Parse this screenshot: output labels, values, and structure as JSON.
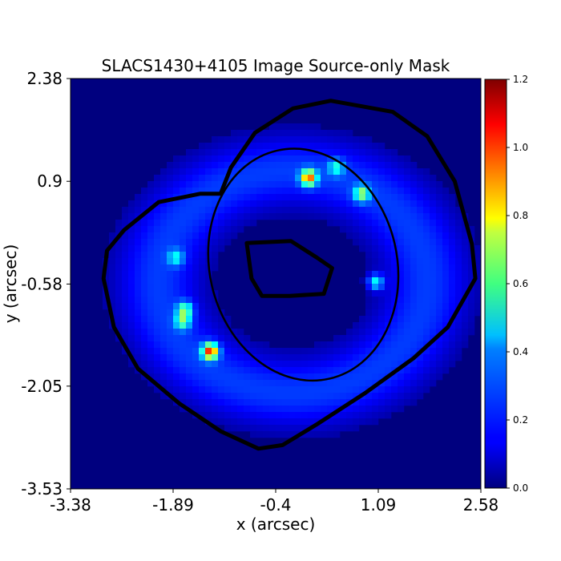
{
  "chart_data": {
    "type": "heatmap",
    "title": "SLACS1430+4105 Image Source-only Mask",
    "xlabel": "x (arcsec)",
    "ylabel": "y (arcsec)",
    "xlim": [
      -3.38,
      2.58
    ],
    "ylim": [
      -3.53,
      2.38
    ],
    "xticks": [
      -3.38,
      -1.89,
      -0.4,
      1.09,
      2.58
    ],
    "xtick_labels": [
      "-3.38",
      "-1.89",
      "-0.4",
      "1.09",
      "2.58"
    ],
    "yticks": [
      2.38,
      0.9,
      -0.58,
      -2.05,
      -3.53
    ],
    "ytick_labels": [
      "2.38",
      "0.9",
      "-0.58",
      "-2.05",
      "-3.53"
    ],
    "colorbar": {
      "range": [
        0.0,
        1.2
      ],
      "ticks": [
        0.0,
        0.2,
        0.4,
        0.6,
        0.8,
        1.0,
        1.2
      ],
      "tick_labels": [
        "0.0",
        "0.2",
        "0.4",
        "0.6",
        "0.8",
        "1.0",
        "1.2"
      ],
      "colormap": "jet"
    },
    "background_value": 0.0,
    "ring": {
      "description": "diffuse arc emission",
      "center": [
        -0.15,
        -0.55
      ],
      "radius_x": 1.95,
      "radius_y": 1.6,
      "width": 0.65,
      "peak_value": 0.22
    },
    "bright_knots": [
      {
        "x": -1.35,
        "y": -1.55,
        "value": 0.85
      },
      {
        "x": 0.08,
        "y": 0.95,
        "value": 0.75
      },
      {
        "x": -1.72,
        "y": -0.95,
        "value": 0.42
      },
      {
        "x": -1.75,
        "y": -1.12,
        "value": 0.38
      },
      {
        "x": 0.85,
        "y": 0.72,
        "value": 0.45
      },
      {
        "x": 1.05,
        "y": -0.55,
        "value": 0.4
      },
      {
        "x": 0.48,
        "y": 1.1,
        "value": 0.3
      },
      {
        "x": -1.85,
        "y": -0.2,
        "value": 0.28
      }
    ],
    "mask_outer_outline": [
      [
        -2.6,
        0.2
      ],
      [
        -2.1,
        0.6
      ],
      [
        -1.5,
        0.72
      ],
      [
        -1.2,
        0.72
      ],
      [
        -1.05,
        1.1
      ],
      [
        -0.7,
        1.6
      ],
      [
        -0.15,
        1.95
      ],
      [
        0.4,
        2.06
      ],
      [
        1.3,
        1.9
      ],
      [
        1.8,
        1.55
      ],
      [
        2.2,
        0.9
      ],
      [
        2.45,
        0.0
      ],
      [
        2.5,
        -0.5
      ],
      [
        2.1,
        -1.2
      ],
      [
        1.6,
        -1.65
      ],
      [
        0.9,
        -2.15
      ],
      [
        0.2,
        -2.6
      ],
      [
        -0.3,
        -2.9
      ],
      [
        -0.65,
        -2.95
      ],
      [
        -1.2,
        -2.7
      ],
      [
        -1.8,
        -2.3
      ],
      [
        -2.4,
        -1.8
      ],
      [
        -2.75,
        -1.2
      ],
      [
        -2.9,
        -0.5
      ],
      [
        -2.85,
        -0.1
      ]
    ],
    "mask_inner_outline": [
      [
        -0.82,
        0.01
      ],
      [
        -0.18,
        0.04
      ],
      [
        0.2,
        -0.2
      ],
      [
        0.42,
        -0.35
      ],
      [
        0.3,
        -0.72
      ],
      [
        -0.2,
        -0.75
      ],
      [
        -0.6,
        -0.75
      ],
      [
        -0.75,
        -0.5
      ]
    ],
    "ellipse": {
      "center": [
        0.0,
        -0.3
      ],
      "semi_major": 1.7,
      "semi_minor": 1.35,
      "angle_deg": 103
    }
  }
}
